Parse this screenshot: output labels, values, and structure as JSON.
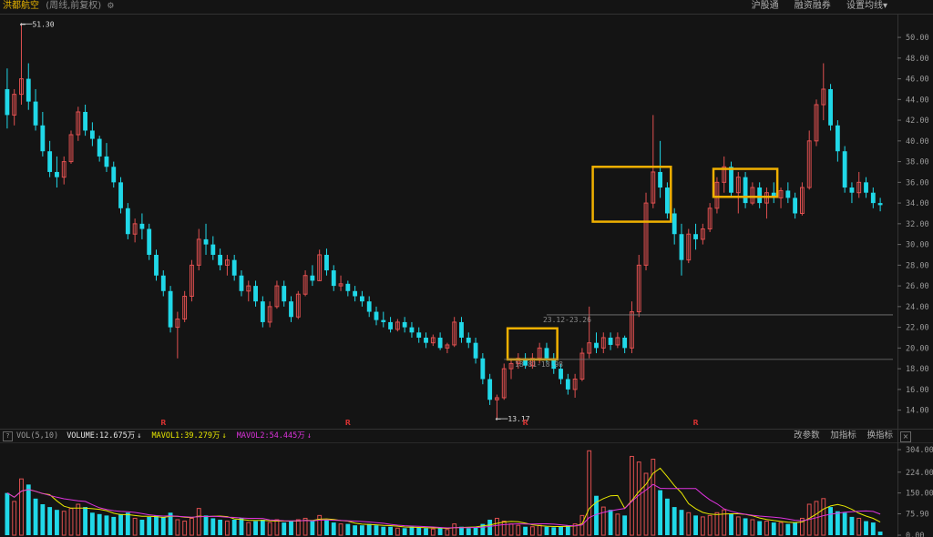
{
  "header": {
    "stock_name": "洪都航空",
    "mode": "(周线,前复权)",
    "gear_icon": "gear-icon",
    "links": [
      "沪股通",
      "融资融券",
      "设置均线▾"
    ]
  },
  "volume_header": {
    "help_icon": "?",
    "title": "VOL(5,10)",
    "volume": "VOLUME:12.675万",
    "ma1": "MAVOL1:39.279万",
    "ma2": "MAVOL2:54.445万",
    "arrow": "↓",
    "actions": [
      "改参数",
      "加指标",
      "换指标"
    ],
    "close": "×"
  },
  "colors": {
    "up": "#e05050",
    "down": "#20d8e8",
    "ma1": "#e8e800",
    "ma2": "#dd33dd",
    "highlight": "#f0b000"
  },
  "chart_data": {
    "type": "candlestick",
    "price_axis": {
      "ticks": [
        "50.00",
        "48.00",
        "46.00",
        "44.00",
        "42.00",
        "40.00",
        "38.00",
        "36.00",
        "34.00",
        "32.00",
        "30.00",
        "28.00",
        "26.00",
        "24.00",
        "22.00",
        "20.00",
        "18.00",
        "16.00",
        "14.00"
      ],
      "ylim": [
        13.0,
        51.5
      ]
    },
    "volume_axis": {
      "ticks": [
        "304.00",
        "224.00",
        "150.00",
        "75.90",
        "0.00"
      ],
      "ylim": [
        0,
        330
      ]
    },
    "annotations": {
      "high": "51.30",
      "low": "13.17",
      "range_upper": "23.12-23.26",
      "range_lower": "18.81-18.98"
    },
    "markers": [
      "R",
      "R",
      "R",
      "R"
    ],
    "candles": [
      [
        45,
        47,
        41.2,
        42.5,
        150
      ],
      [
        42.5,
        45,
        41.5,
        44.5,
        120
      ],
      [
        44.5,
        51.3,
        43.5,
        46,
        200
      ],
      [
        46,
        47.5,
        43,
        43.8,
        180
      ],
      [
        43.8,
        45,
        41,
        41.5,
        130
      ],
      [
        41.5,
        42.8,
        38.5,
        39,
        110
      ],
      [
        39,
        40,
        36.5,
        37,
        100
      ],
      [
        37,
        38.5,
        35.5,
        36.5,
        90
      ],
      [
        36.5,
        38.5,
        35.8,
        38,
        85
      ],
      [
        38,
        41,
        37.8,
        40.6,
        95
      ],
      [
        40.6,
        43.3,
        40,
        42.8,
        110
      ],
      [
        42.8,
        43.5,
        40.5,
        41,
        100
      ],
      [
        41,
        41.8,
        39.5,
        40.2,
        80
      ],
      [
        40.2,
        40.5,
        38,
        38.5,
        75
      ],
      [
        38.5,
        39.8,
        37,
        37.5,
        70
      ],
      [
        37.5,
        38,
        35.5,
        36,
        65
      ],
      [
        36,
        36.5,
        33,
        33.5,
        75
      ],
      [
        33.5,
        34,
        30.5,
        31,
        80
      ],
      [
        31,
        32.5,
        30.2,
        32,
        60
      ],
      [
        32,
        33,
        30.5,
        31.5,
        55
      ],
      [
        31.5,
        32,
        28.5,
        29,
        65
      ],
      [
        29,
        29.5,
        26.5,
        27,
        70
      ],
      [
        27,
        27.5,
        25,
        25.5,
        65
      ],
      [
        25.5,
        26,
        21.5,
        22,
        80
      ],
      [
        22,
        23.5,
        19,
        22.8,
        55
      ],
      [
        22.8,
        25.5,
        22.5,
        25,
        50
      ],
      [
        25,
        28.5,
        24.5,
        28,
        60
      ],
      [
        28,
        31.5,
        27.5,
        30.5,
        95
      ],
      [
        30.5,
        32,
        29,
        30,
        70
      ],
      [
        30,
        30.8,
        28.5,
        29,
        60
      ],
      [
        29,
        29.6,
        27.5,
        28,
        55
      ],
      [
        28,
        29,
        27,
        28.5,
        50
      ],
      [
        28.5,
        29,
        26.5,
        27,
        55
      ],
      [
        27,
        27.5,
        25,
        25.5,
        60
      ],
      [
        25.5,
        26.5,
        24.5,
        26,
        45
      ],
      [
        26,
        26.5,
        24,
        24.5,
        50
      ],
      [
        24.5,
        25,
        22,
        22.5,
        55
      ],
      [
        22.5,
        24.5,
        22,
        24,
        45
      ],
      [
        24,
        26.5,
        23.8,
        26,
        55
      ],
      [
        26,
        26.5,
        24,
        24.5,
        45
      ],
      [
        24.5,
        25,
        22.5,
        23,
        50
      ],
      [
        23,
        25.5,
        22.8,
        25.2,
        55
      ],
      [
        25.2,
        27.5,
        25,
        27,
        60
      ],
      [
        27,
        28,
        26,
        26.5,
        50
      ],
      [
        26.5,
        29.5,
        26.5,
        29,
        70
      ],
      [
        29,
        29.6,
        27,
        27.5,
        55
      ],
      [
        27.5,
        28,
        25.5,
        26,
        45
      ],
      [
        26,
        27,
        25.5,
        26.2,
        40
      ],
      [
        26.2,
        26.5,
        25,
        25.5,
        40
      ],
      [
        25.5,
        26,
        24.5,
        25,
        35
      ],
      [
        25,
        25.5,
        24,
        24.5,
        35
      ],
      [
        24.5,
        25,
        23,
        23.5,
        40
      ],
      [
        23.5,
        24,
        22.2,
        22.7,
        35
      ],
      [
        22.7,
        23.5,
        22,
        22.5,
        30
      ],
      [
        22.5,
        23,
        21.5,
        21.8,
        30
      ],
      [
        21.8,
        22.8,
        21.6,
        22.5,
        25
      ],
      [
        22.5,
        23,
        21.5,
        22,
        25
      ],
      [
        22,
        22.5,
        21,
        21.5,
        30
      ],
      [
        21.5,
        22,
        20.5,
        21,
        28
      ],
      [
        21,
        21.5,
        20,
        20.5,
        25
      ],
      [
        20.5,
        21.3,
        20.2,
        21,
        22
      ],
      [
        21,
        21.5,
        19.8,
        20,
        25
      ],
      [
        20,
        20.5,
        19.5,
        20.3,
        20
      ],
      [
        20.3,
        23,
        20.1,
        22.5,
        40
      ],
      [
        22.5,
        23,
        20.5,
        21,
        30
      ],
      [
        21,
        21.5,
        20,
        20.5,
        25
      ],
      [
        20.5,
        21,
        18.5,
        19,
        30
      ],
      [
        19,
        19.5,
        16.5,
        17,
        40
      ],
      [
        17,
        17.5,
        14.5,
        15,
        55
      ],
      [
        15,
        15.5,
        13.17,
        15.2,
        60
      ],
      [
        15.2,
        18.5,
        15,
        18,
        50
      ],
      [
        18,
        19,
        17,
        18.5,
        40
      ],
      [
        18.5,
        19.5,
        18,
        19,
        35
      ],
      [
        19,
        19.5,
        18,
        18.3,
        30
      ],
      [
        18.3,
        19.5,
        18,
        19,
        30
      ],
      [
        19,
        20.5,
        18.5,
        20,
        35
      ],
      [
        20,
        20.5,
        18.5,
        19,
        30
      ],
      [
        19,
        19.5,
        17.5,
        18,
        28
      ],
      [
        18,
        18.5,
        16.5,
        17,
        30
      ],
      [
        17,
        17.5,
        15.5,
        16,
        35
      ],
      [
        16,
        17.5,
        15.2,
        17,
        40
      ],
      [
        17,
        20,
        16.8,
        19.5,
        70
      ],
      [
        19.5,
        24,
        19,
        20.5,
        300
      ],
      [
        20.5,
        21.5,
        19.5,
        20,
        140
      ],
      [
        20,
        21.5,
        19.5,
        21,
        100
      ],
      [
        21,
        21.5,
        19.8,
        20.3,
        90
      ],
      [
        20.3,
        21.5,
        20,
        21,
        75
      ],
      [
        21,
        21.2,
        19.5,
        20,
        70
      ],
      [
        20,
        24.5,
        19.5,
        23.5,
        280
      ],
      [
        23.5,
        29,
        23,
        28,
        260
      ],
      [
        28,
        35,
        27.5,
        34,
        220
      ],
      [
        34,
        42.5,
        33.5,
        37,
        270
      ],
      [
        37,
        40,
        34.5,
        35.5,
        160
      ],
      [
        35.5,
        36,
        32.5,
        33,
        130
      ],
      [
        33,
        33.5,
        30,
        31,
        100
      ],
      [
        31,
        32,
        27,
        28.5,
        90
      ],
      [
        28.5,
        31.5,
        28.2,
        31,
        80
      ],
      [
        31,
        32,
        29.5,
        30.5,
        70
      ],
      [
        30.5,
        32,
        30,
        31.5,
        65
      ],
      [
        31.5,
        34,
        31.2,
        33.5,
        70
      ],
      [
        33.5,
        36.5,
        33,
        36,
        80
      ],
      [
        36,
        38.5,
        35,
        37.5,
        90
      ],
      [
        37.5,
        38,
        34.5,
        35,
        75
      ],
      [
        35,
        37,
        33,
        36.5,
        65
      ],
      [
        36.5,
        37,
        33.5,
        34,
        60
      ],
      [
        34,
        36,
        33.8,
        35.5,
        55
      ],
      [
        35.5,
        36,
        33.5,
        34,
        50
      ],
      [
        34,
        35.5,
        32.5,
        35,
        50
      ],
      [
        35,
        36,
        34,
        34.5,
        45
      ],
      [
        34.5,
        35.5,
        33.5,
        35.2,
        45
      ],
      [
        35.2,
        36,
        34,
        34.5,
        40
      ],
      [
        34.5,
        35,
        32.5,
        33,
        45
      ],
      [
        33,
        36,
        32.8,
        35.5,
        60
      ],
      [
        35.5,
        41,
        35.3,
        40,
        110
      ],
      [
        40,
        44,
        39.5,
        43.5,
        120
      ],
      [
        43.5,
        47.5,
        42,
        45,
        130
      ],
      [
        45,
        45.5,
        41,
        41.5,
        100
      ],
      [
        41.5,
        42,
        38,
        39,
        85
      ],
      [
        39,
        39.5,
        35,
        35.5,
        80
      ],
      [
        35.5,
        36,
        34,
        35,
        65
      ],
      [
        35,
        37,
        34.5,
        36,
        60
      ],
      [
        36,
        36.5,
        34.5,
        35,
        50
      ],
      [
        35,
        35.5,
        33.5,
        34,
        45
      ],
      [
        34,
        34.5,
        33.2,
        33.8,
        12.7
      ]
    ]
  }
}
